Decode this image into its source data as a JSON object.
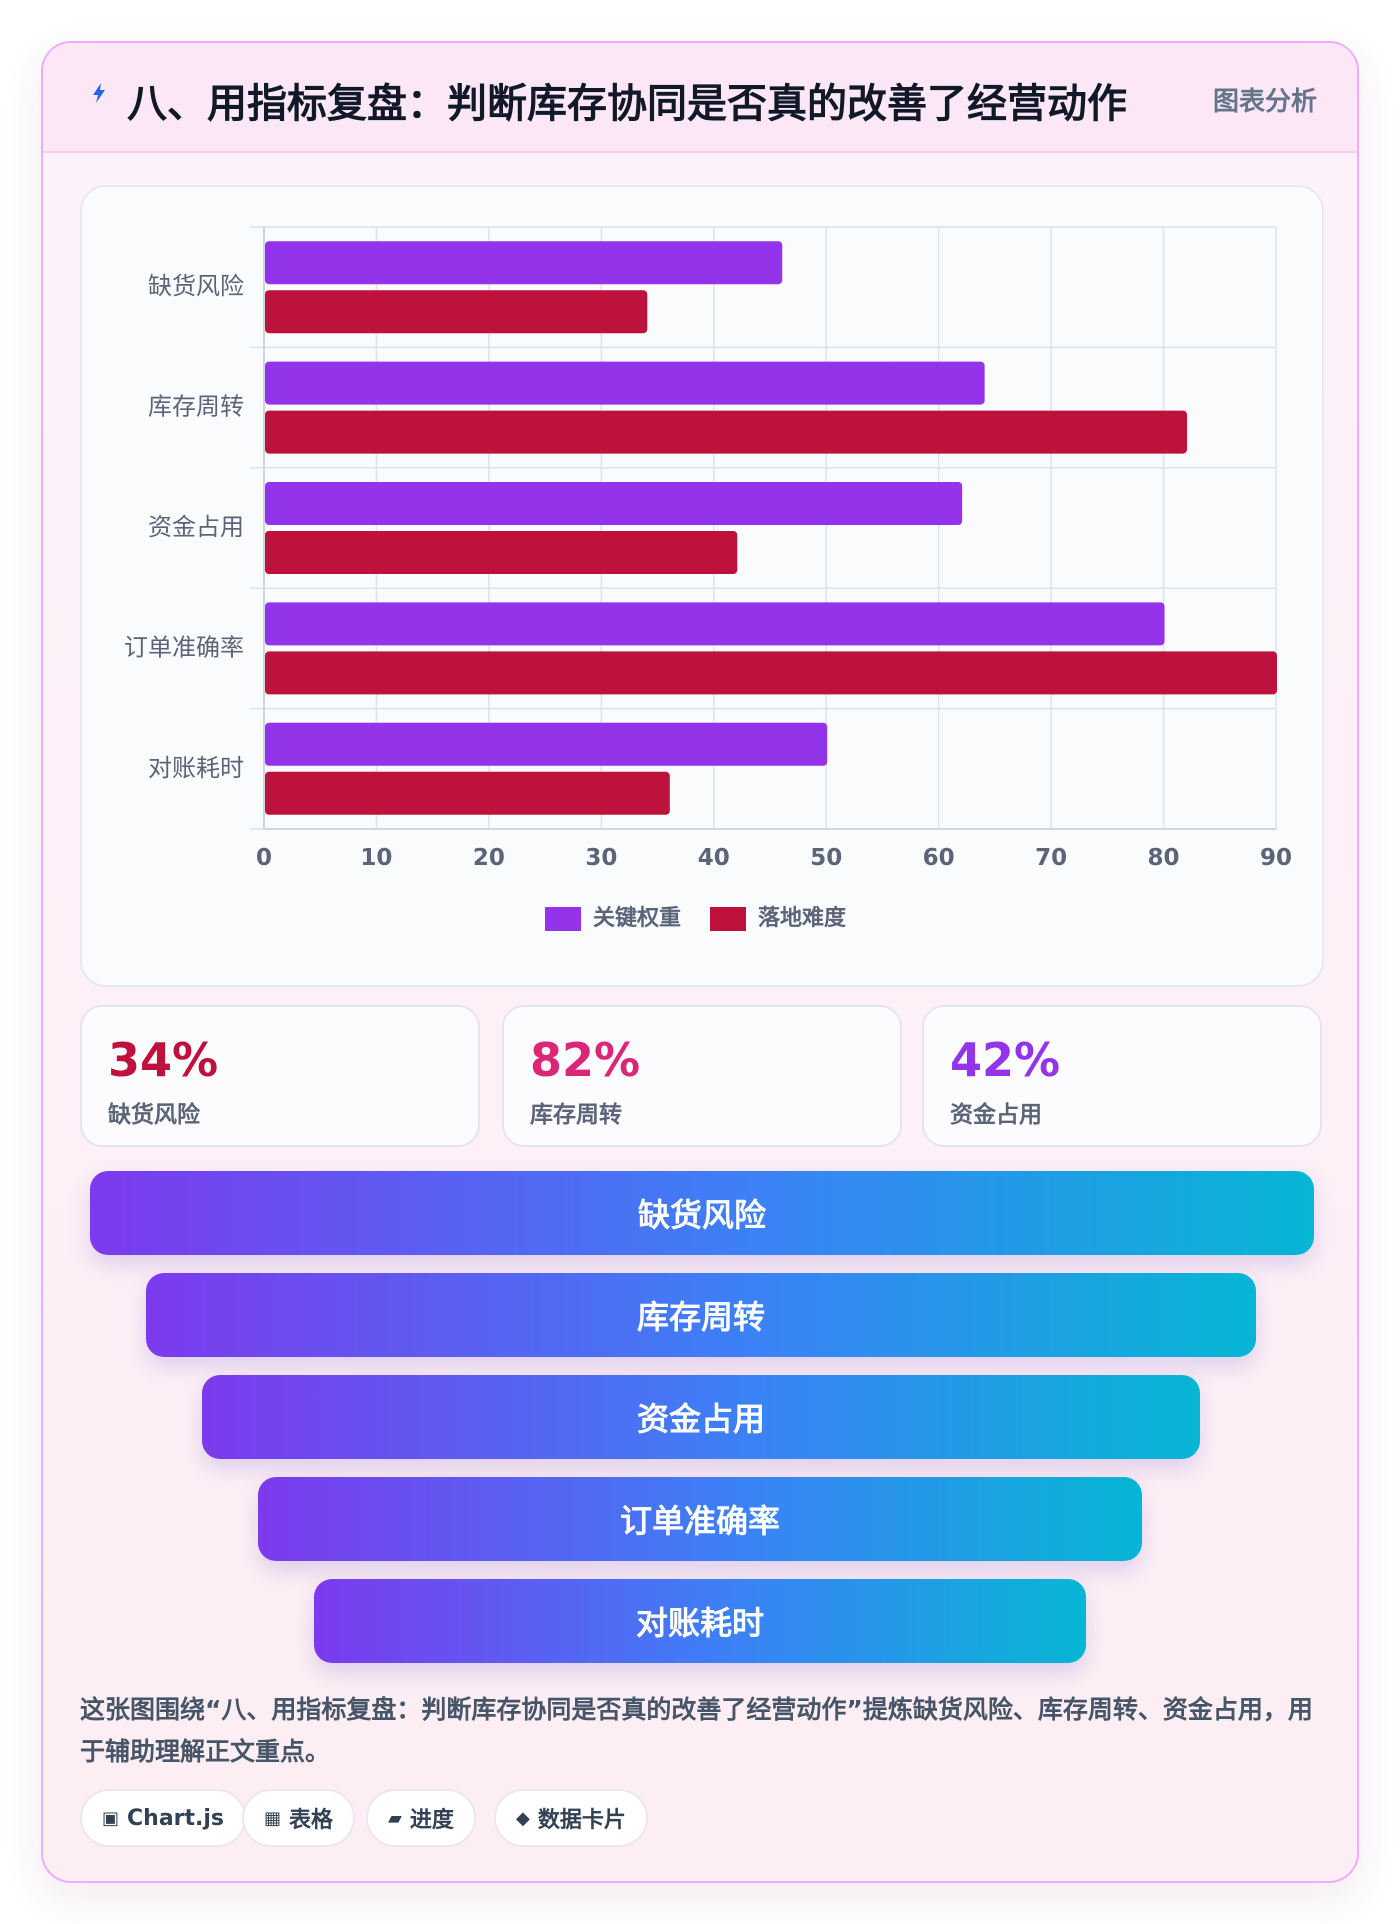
{
  "header": {
    "title": "八、用指标复盘：判断库存协同是否真的改善了经营动作",
    "icon": "lightning-icon",
    "tag": "图表分析"
  },
  "chart_data": {
    "type": "bar",
    "orientation": "horizontal",
    "categories": [
      "缺货风险",
      "库存周转",
      "资金占用",
      "订单准确率",
      "对账耗时"
    ],
    "series": [
      {
        "name": "关键权重",
        "color": "#9333ea",
        "values": [
          46,
          64,
          62,
          80,
          50
        ]
      },
      {
        "name": "落地难度",
        "color": "#be123c",
        "values": [
          34,
          82,
          42,
          90,
          36
        ]
      }
    ],
    "xlim": [
      0,
      90
    ],
    "xticks": [
      0,
      10,
      20,
      30,
      40,
      50,
      60,
      70,
      80,
      90
    ],
    "grid": true,
    "legend_position": "bottom"
  },
  "stats": [
    {
      "value": "34%",
      "label": "缺货风险",
      "color": "#be123c"
    },
    {
      "value": "82%",
      "label": "库存周转",
      "color": "#db2777"
    },
    {
      "value": "42%",
      "label": "资金占用",
      "color": "#9333ea"
    }
  ],
  "funnel": [
    "缺货风险",
    "库存周转",
    "资金占用",
    "订单准确率",
    "对账耗时"
  ],
  "caption": "这张图围绕“八、用指标复盘：判断库存协同是否真的改善了经营动作”提炼缺货风险、库存周转、资金占用，用于辅助理解正文重点。",
  "chips": [
    {
      "icon": "▣",
      "icon_name": "chart-icon",
      "label": "Chart.js"
    },
    {
      "icon": "▦",
      "icon_name": "table-icon",
      "label": "表格"
    },
    {
      "icon": "▰",
      "icon_name": "progress-icon",
      "label": "进度"
    },
    {
      "icon": "◆",
      "icon_name": "data-card-icon",
      "label": "数据卡片"
    }
  ]
}
